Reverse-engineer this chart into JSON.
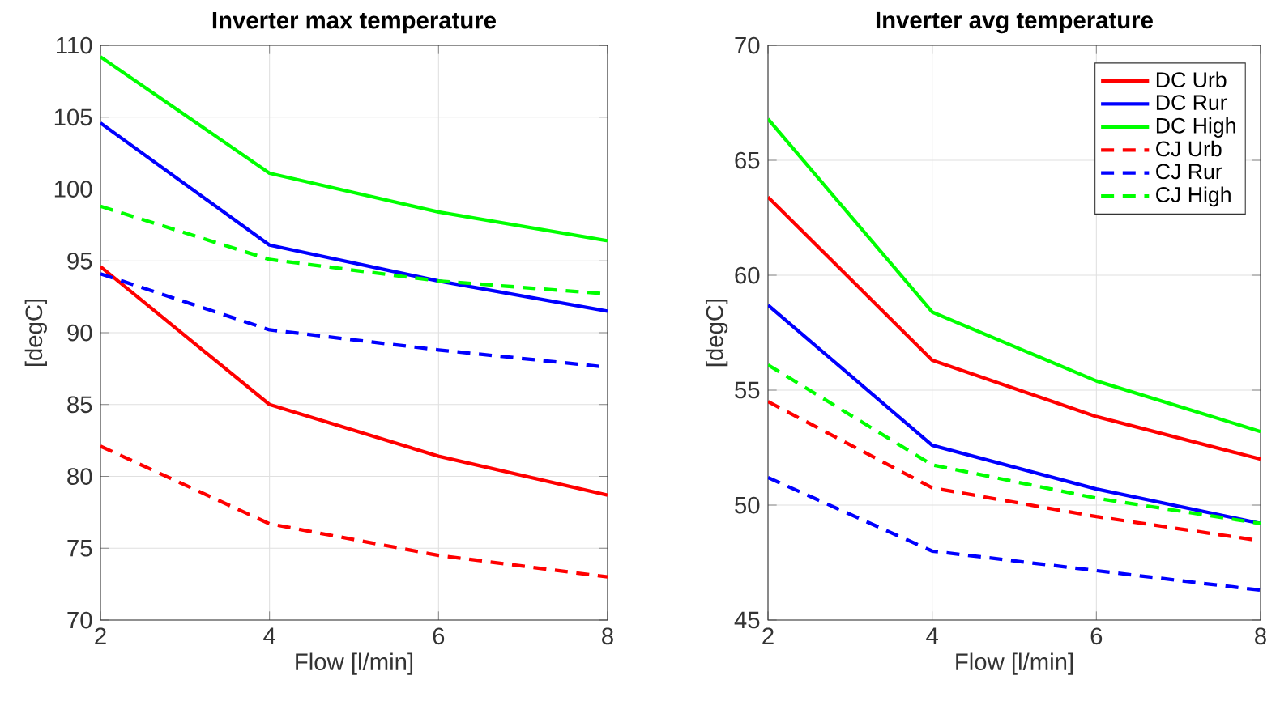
{
  "chart_data": [
    {
      "type": "line",
      "title": "Inverter max temperature",
      "xlabel": "Flow [l/min]",
      "ylabel": "[degC]",
      "x": [
        2,
        4,
        6,
        8
      ],
      "xlim": [
        2,
        8
      ],
      "xticks": [
        2,
        4,
        6,
        8
      ],
      "ylim": [
        70,
        110
      ],
      "yticks": [
        70,
        75,
        80,
        85,
        90,
        95,
        100,
        105,
        110
      ],
      "grid": true,
      "legend": false,
      "series": [
        {
          "color": "#ff0000",
          "line_style": "solid",
          "values": [
            94.6,
            85.0,
            81.4,
            78.7
          ]
        },
        {
          "color": "#0000ff",
          "line_style": "solid",
          "values": [
            104.6,
            96.1,
            93.6,
            91.5
          ]
        },
        {
          "color": "#00ff00",
          "line_style": "solid",
          "values": [
            109.2,
            101.1,
            98.4,
            96.4
          ]
        },
        {
          "color": "#ff0000",
          "line_style": "dashed",
          "values": [
            82.1,
            76.7,
            74.5,
            73.0
          ]
        },
        {
          "color": "#0000ff",
          "line_style": "dashed",
          "values": [
            94.1,
            90.2,
            88.8,
            87.6
          ]
        },
        {
          "color": "#00ff00",
          "line_style": "dashed",
          "values": [
            98.8,
            95.1,
            93.6,
            92.7
          ]
        }
      ]
    },
    {
      "type": "line",
      "title": "Inverter avg temperature",
      "xlabel": "Flow [l/min]",
      "ylabel": "[degC]",
      "x": [
        2,
        4,
        6,
        8
      ],
      "xlim": [
        2,
        8
      ],
      "xticks": [
        2,
        4,
        6,
        8
      ],
      "ylim": [
        45,
        70
      ],
      "yticks": [
        45,
        50,
        55,
        60,
        65,
        70
      ],
      "grid": true,
      "legend": "top right",
      "series": [
        {
          "name": "DC Urb",
          "color": "#ff0000",
          "line_style": "solid",
          "values": [
            63.4,
            56.3,
            53.85,
            52.0
          ]
        },
        {
          "name": "DC Rur",
          "color": "#0000ff",
          "line_style": "solid",
          "values": [
            58.7,
            52.6,
            50.7,
            49.2
          ]
        },
        {
          "name": "DC High",
          "color": "#00ff00",
          "line_style": "solid",
          "values": [
            66.8,
            58.4,
            55.4,
            53.2
          ]
        },
        {
          "name": "CJ Urb",
          "color": "#ff0000",
          "line_style": "dashed",
          "values": [
            54.5,
            50.75,
            49.5,
            48.45
          ]
        },
        {
          "name": "CJ Rur",
          "color": "#0000ff",
          "line_style": "dashed",
          "values": [
            51.2,
            48.0,
            47.15,
            46.3
          ]
        },
        {
          "name": "CJ High",
          "color": "#00ff00",
          "line_style": "dashed",
          "values": [
            56.1,
            51.75,
            50.3,
            49.2
          ]
        }
      ]
    }
  ]
}
